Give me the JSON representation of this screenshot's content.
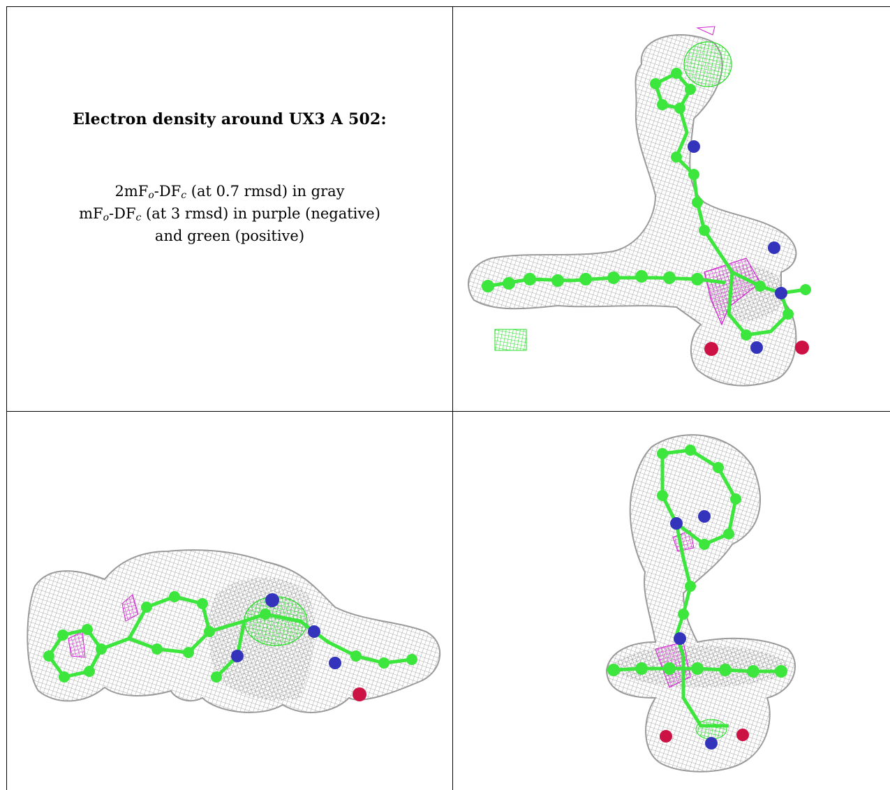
{
  "caption": {
    "title": "Electron density around UX3 A 502:",
    "line1": {
      "a": "2mF",
      "a_sub": "o",
      "b": "-DF",
      "b_sub": "c",
      "rest": " (at 0.7 rmsd) in gray"
    },
    "line2": {
      "a": "mF",
      "a_sub": "o",
      "b": "-DF",
      "b_sub": "c",
      "rest": " (at 3 rmsd) in purple (negative)"
    },
    "line3": "and green (positive)"
  },
  "colors": {
    "mesh_gray": "#9a9a9a",
    "carbon_green": "#3ce63c",
    "nitrogen_blue": "#3333bb",
    "oxygen_red": "#cc1144",
    "negative_purple": "#d020d0",
    "positive_green": "#22dd22"
  },
  "panels": [
    {
      "id": "top-right",
      "view": "front"
    },
    {
      "id": "bottom-left",
      "view": "side"
    },
    {
      "id": "bottom-right",
      "view": "top"
    }
  ]
}
